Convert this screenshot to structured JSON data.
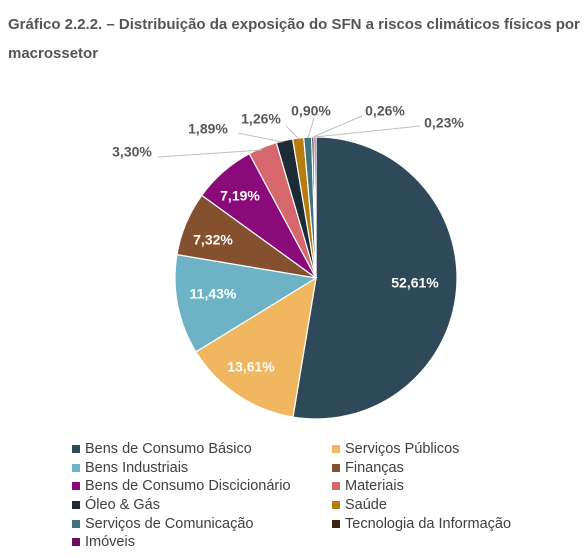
{
  "title": "Gráfico 2.2.2. – Distribuição da exposição do SFN a riscos climáticos físicos por macrossetor",
  "chart_data": {
    "type": "pie",
    "title": "Gráfico 2.2.2. – Distribuição da exposição do SFN a riscos climáticos físicos por macrossetor",
    "legend_position": "bottom",
    "slices": [
      {
        "name": "Bens de Consumo Básico",
        "value": 52.61,
        "label": "52,61%",
        "color": "#2e4a5a"
      },
      {
        "name": "Serviços Públicos",
        "value": 13.61,
        "label": "13,61%",
        "color": "#f0b660"
      },
      {
        "name": "Bens Industriais",
        "value": 11.43,
        "label": "11,43%",
        "color": "#6db3c5"
      },
      {
        "name": "Finanças",
        "value": 7.32,
        "label": "7,32%",
        "color": "#84502e"
      },
      {
        "name": "Bens de Consumo Discicionário",
        "value": 7.19,
        "label": "7,19%",
        "color": "#8a0a7a"
      },
      {
        "name": "Materiais",
        "value": 3.3,
        "label": "3,30%",
        "color": "#d6686d"
      },
      {
        "name": "Óleo & Gás",
        "value": 1.89,
        "label": "1,89%",
        "color": "#1d2b36"
      },
      {
        "name": "Saúde",
        "value": 1.26,
        "label": "1,26%",
        "color": "#b67c0f"
      },
      {
        "name": "Serviços de Comunicação",
        "value": 0.9,
        "label": "0,90%",
        "color": "#3f7380"
      },
      {
        "name": "Tecnologia da Informação",
        "value": 0.26,
        "label": "0,26%",
        "color": "#3b2516"
      },
      {
        "name": "Imóveis",
        "value": 0.23,
        "label": "0,23%",
        "color": "#6e0b5e"
      }
    ]
  }
}
